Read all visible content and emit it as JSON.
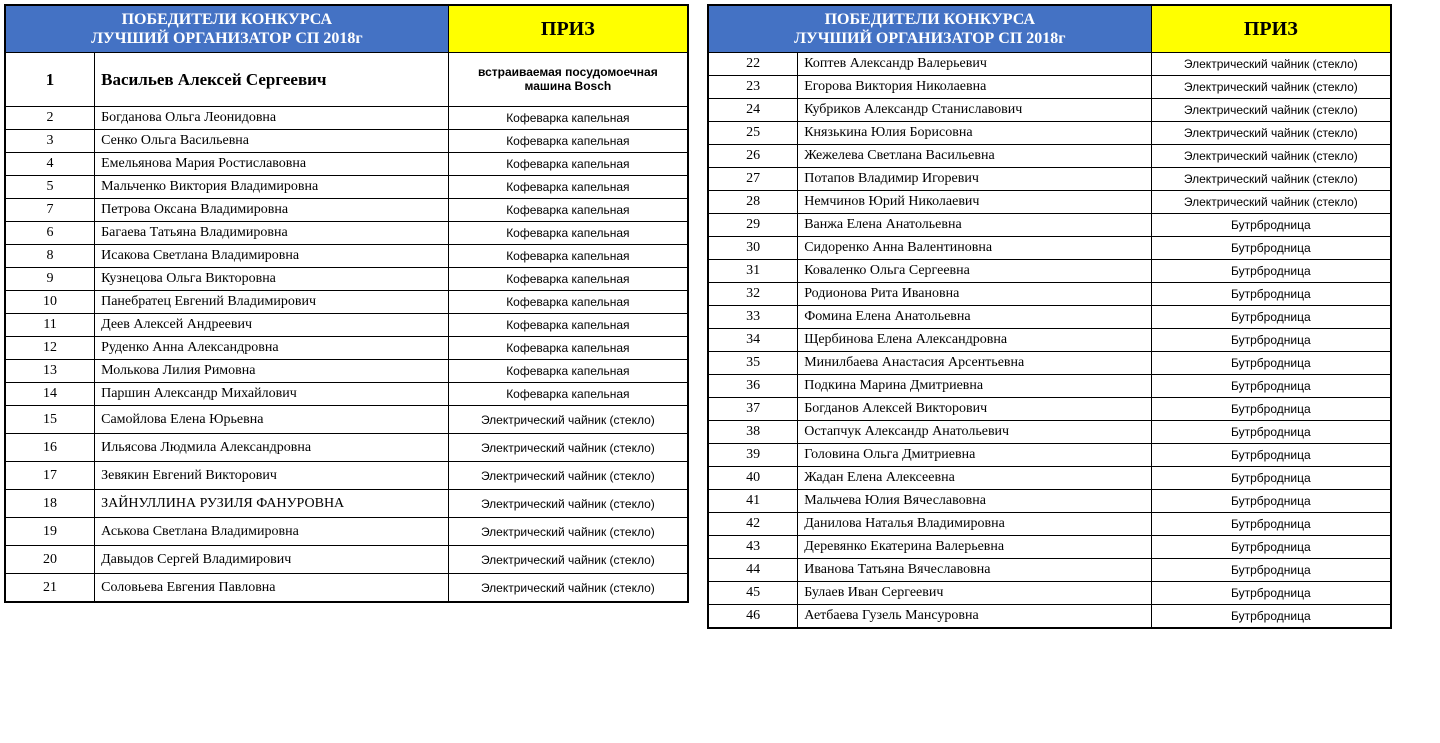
{
  "header": {
    "title_line1": "ПОБЕДИТЕЛИ КОНКУРСА",
    "title_line2": "ЛУЧШИЙ ОРГАНИЗАТОР СП 2018г",
    "prize_label": "ПРИЗ"
  },
  "colors": {
    "header_bg": "#4472c4",
    "header_text": "#ffffff",
    "prize_bg": "#ffff00",
    "border": "#000000",
    "background": "#ffffff"
  },
  "left_table": {
    "columns": {
      "num_width": 90,
      "name_width": 355,
      "prize_width": 240
    },
    "rows": [
      {
        "num": "1",
        "name": "Васильев Алексей Сергеевич",
        "prize": "встраиваемая посудомоечная машина Bosch",
        "big": true
      },
      {
        "num": "2",
        "name": "Богданова Ольга Леонидовна",
        "prize": "Кофеварка капельная"
      },
      {
        "num": "3",
        "name": "Сенко Ольга Васильевна",
        "prize": "Кофеварка капельная"
      },
      {
        "num": "4",
        "name": "Емельянова Мария Ростиславовна",
        "prize": "Кофеварка капельная"
      },
      {
        "num": "5",
        "name": "Мальченко Виктория Владимировна",
        "prize": "Кофеварка капельная"
      },
      {
        "num": "7",
        "name": "Петрова Оксана Владимировна",
        "prize": "Кофеварка капельная"
      },
      {
        "num": "6",
        "name": "Багаева Татьяна Владимировна",
        "prize": "Кофеварка капельная"
      },
      {
        "num": "8",
        "name": "Исакова Светлана Владимировна",
        "prize": "Кофеварка капельная"
      },
      {
        "num": "9",
        "name": "Кузнецова Ольга Викторовна",
        "prize": "Кофеварка капельная"
      },
      {
        "num": "10",
        "name": "Панебратец Евгений Владимирович",
        "prize": "Кофеварка капельная"
      },
      {
        "num": "11",
        "name": "Деев Алексей Андреевич",
        "prize": "Кофеварка капельная"
      },
      {
        "num": "12",
        "name": "Руденко Анна Александровна",
        "prize": "Кофеварка капельная"
      },
      {
        "num": "13",
        "name": "Молькова Лилия Римовна",
        "prize": "Кофеварка капельная"
      },
      {
        "num": "14",
        "name": "Паршин Александр Михайлович",
        "prize": "Кофеварка капельная"
      },
      {
        "num": "15",
        "name": "Самойлова Елена Юрьевна",
        "prize": "Электрический чайник (стекло)",
        "mid": true
      },
      {
        "num": "16",
        "name": "Ильясова Людмила Александровна",
        "prize": "Электрический чайник (стекло)",
        "mid": true
      },
      {
        "num": "17",
        "name": "Зевякин Евгений Викторович",
        "prize": "Электрический чайник (стекло)",
        "mid": true
      },
      {
        "num": "18",
        "name": "ЗАЙНУЛЛИНА РУЗИЛЯ ФАНУРОВНА",
        "prize": "Электрический чайник (стекло)",
        "mid": true
      },
      {
        "num": "19",
        "name": "Аськова Светлана Владимировна",
        "prize": "Электрический чайник (стекло)",
        "mid": true
      },
      {
        "num": "20",
        "name": "Давыдов Сергей Владимирович",
        "prize": "Электрический чайник (стекло)",
        "mid": true
      },
      {
        "num": "21",
        "name": "Соловьева Евгения Павловна",
        "prize": "Электрический чайник (стекло)",
        "mid": true
      }
    ]
  },
  "right_table": {
    "columns": {
      "num_width": 100,
      "name_width": 360,
      "prize_width": 225
    },
    "rows": [
      {
        "num": "22",
        "name": "Коптев Александр Валерьевич",
        "prize": "Электрический чайник (стекло)"
      },
      {
        "num": "23",
        "name": "Егорова Виктория Николаевна",
        "prize": "Электрический чайник (стекло)"
      },
      {
        "num": "24",
        "name": "Кубриков Александр Станиславович",
        "prize": "Электрический чайник (стекло)"
      },
      {
        "num": "25",
        "name": "Князькина Юлия Борисовна",
        "prize": "Электрический чайник (стекло)"
      },
      {
        "num": "26",
        "name": "Жежелева Светлана Васильевна",
        "prize": "Электрический чайник (стекло)"
      },
      {
        "num": "27",
        "name": "Потапов Владимир Игоревич",
        "prize": "Электрический чайник (стекло)"
      },
      {
        "num": "28",
        "name": "Немчинов Юрий Николаевич",
        "prize": "Электрический чайник (стекло)"
      },
      {
        "num": "29",
        "name": "Ванжа Елена Анатольевна",
        "prize": "Бутрбродница"
      },
      {
        "num": "30",
        "name": "Сидоренко Анна Валентиновна",
        "prize": "Бутрбродница"
      },
      {
        "num": "31",
        "name": "Коваленко Ольга Сергеевна",
        "prize": "Бутрбродница"
      },
      {
        "num": "32",
        "name": "Родионова Рита Ивановна",
        "prize": "Бутрбродница"
      },
      {
        "num": "33",
        "name": "Фомина Елена Анатольевна",
        "prize": "Бутрбродница"
      },
      {
        "num": "34",
        "name": "Щербинова Елена Александровна",
        "prize": "Бутрбродница"
      },
      {
        "num": "35",
        "name": "Минилбаева Анастасия Арсентьевна",
        "prize": "Бутрбродница"
      },
      {
        "num": "36",
        "name": "Подкина Марина Дмитриевна",
        "prize": "Бутрбродница"
      },
      {
        "num": "37",
        "name": "Богданов Алексей Викторович",
        "prize": "Бутрбродница"
      },
      {
        "num": "38",
        "name": "Остапчук Александр Анатольевич",
        "prize": "Бутрбродница"
      },
      {
        "num": "39",
        "name": "Головина Ольга Дмитриевна",
        "prize": "Бутрбродница"
      },
      {
        "num": "40",
        "name": "Жадан Елена Алексеевна",
        "prize": "Бутрбродница"
      },
      {
        "num": "41",
        "name": "Мальчева Юлия Вячеславовна",
        "prize": "Бутрбродница"
      },
      {
        "num": "42",
        "name": "Данилова Наталья Владимировна",
        "prize": "Бутрбродница"
      },
      {
        "num": "43",
        "name": "Деревянко Екатерина Валерьевна",
        "prize": "Бутрбродница"
      },
      {
        "num": "44",
        "name": "Иванова Татьяна Вячеславовна",
        "prize": "Бутрбродница"
      },
      {
        "num": "45",
        "name": "Булаев Иван Сергеевич",
        "prize": "Бутрбродница"
      },
      {
        "num": "46",
        "name": "Аетбаева Гузель Мансуровна",
        "prize": "Бутрбродница"
      }
    ]
  }
}
